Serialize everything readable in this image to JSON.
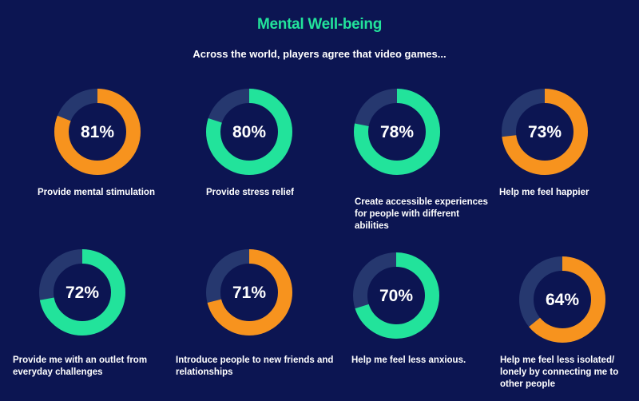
{
  "title": "Mental Well-being",
  "subtitle": "Across the world, players agree that video games...",
  "colors": {
    "background": "#0c1552",
    "orange": "#f7931e",
    "green": "#22e39b",
    "remainder": "#26386f",
    "title": "#22e39b"
  },
  "chart_data": {
    "type": "donut",
    "title": "Mental Well-being",
    "subtitle": "Across the world, players agree that video games...",
    "items": [
      {
        "label": "Provide mental stimulation",
        "value": 81,
        "display": "81%",
        "color": "orange"
      },
      {
        "label": "Provide stress relief",
        "value": 80,
        "display": "80%",
        "color": "green"
      },
      {
        "label": "Create accessible experiences for people with different abilities",
        "value": 78,
        "display": "78%",
        "color": "green"
      },
      {
        "label": "Help me feel happier",
        "value": 73,
        "display": "73%",
        "color": "orange"
      },
      {
        "label": "Provide me with an outlet from everyday challenges",
        "value": 72,
        "display": "72%",
        "color": "green"
      },
      {
        "label": "Introduce people to new friends and relationships",
        "value": 71,
        "display": "71%",
        "color": "orange"
      },
      {
        "label": "Help me feel less anxious.",
        "value": 70,
        "display": "70%",
        "color": "green"
      },
      {
        "label": "Help me feel less isolated/ lonely by connecting me to other people",
        "value": 64,
        "display": "64%",
        "color": "orange"
      }
    ]
  }
}
